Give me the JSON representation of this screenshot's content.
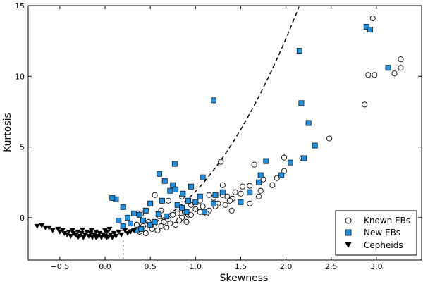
{
  "chart_data": {
    "type": "scatter",
    "xlabel": "Skewness",
    "ylabel": "Kurtosis",
    "xlim": [
      -0.85,
      3.5
    ],
    "ylim": [
      -3,
      15
    ],
    "xticks": [
      -0.5,
      0.0,
      0.5,
      1.0,
      1.5,
      2.0,
      2.5,
      3.0
    ],
    "xtick_labels": [
      "−0.5",
      "0.0",
      "0.5",
      "1.0",
      "1.5",
      "2.0",
      "2.5",
      "3.0"
    ],
    "yticks": [
      0,
      5,
      10,
      15
    ],
    "ytick_labels": [
      "0",
      "5",
      "10",
      "15"
    ],
    "grid": false,
    "legend_position": "lower-right",
    "reference_curve": {
      "style": "dashed",
      "color": "#000000",
      "x_start": 0.18,
      "vertical_marker_x": 0.2
    },
    "series": [
      {
        "name": "Known EBs",
        "marker": "open-circle",
        "color": "#000000",
        "points": [
          [
            2.96,
            14.1
          ],
          [
            2.91,
            10.1
          ],
          [
            2.98,
            10.1
          ],
          [
            3.2,
            10.2
          ],
          [
            3.27,
            11.2
          ],
          [
            3.27,
            10.6
          ],
          [
            2.87,
            8.0
          ],
          [
            2.48,
            5.6
          ],
          [
            2.18,
            4.2
          ],
          [
            1.65,
            3.75
          ],
          [
            1.28,
            3.95
          ],
          [
            1.98,
            4.25
          ],
          [
            1.98,
            3.3
          ],
          [
            1.9,
            2.8
          ],
          [
            1.85,
            2.3
          ],
          [
            1.75,
            2.7
          ],
          [
            1.72,
            1.9
          ],
          [
            1.6,
            2.25
          ],
          [
            1.52,
            2.2
          ],
          [
            1.5,
            1.7
          ],
          [
            1.44,
            1.8
          ],
          [
            1.41,
            1.35
          ],
          [
            1.38,
            1.2
          ],
          [
            1.35,
            1.5
          ],
          [
            1.33,
            0.9
          ],
          [
            1.3,
            2.3
          ],
          [
            1.3,
            1.6
          ],
          [
            1.25,
            1.0
          ],
          [
            1.22,
            0.8
          ],
          [
            1.2,
            1.4
          ],
          [
            1.15,
            0.5
          ],
          [
            1.12,
            0.3
          ],
          [
            1.08,
            0.8
          ],
          [
            1.05,
            0.4
          ],
          [
            1.0,
            0.6
          ],
          [
            0.95,
            0.9
          ],
          [
            0.92,
            0.2
          ],
          [
            0.9,
            -0.3
          ],
          [
            0.88,
            0.4
          ],
          [
            0.85,
            0.0
          ],
          [
            0.82,
            -0.2
          ],
          [
            0.8,
            0.3
          ],
          [
            0.78,
            -0.5
          ],
          [
            0.75,
            0.2
          ],
          [
            0.72,
            -0.4
          ],
          [
            0.7,
            -0.1
          ],
          [
            0.68,
            -0.7
          ],
          [
            0.65,
            -0.3
          ],
          [
            0.62,
            -0.6
          ],
          [
            0.6,
            0.1
          ],
          [
            0.58,
            -0.9
          ],
          [
            0.55,
            -0.4
          ],
          [
            0.52,
            -0.8
          ],
          [
            0.5,
            1.0
          ],
          [
            0.48,
            -0.3
          ],
          [
            0.45,
            -1.1
          ],
          [
            0.42,
            -0.6
          ],
          [
            0.4,
            0.3
          ],
          [
            0.38,
            -1.0
          ],
          [
            0.35,
            -0.5
          ],
          [
            0.55,
            1.6
          ],
          [
            0.62,
            0.5
          ],
          [
            0.7,
            1.2
          ],
          [
            0.95,
            0.2
          ],
          [
            1.05,
            1.2
          ],
          [
            1.15,
            1.6
          ],
          [
            1.4,
            0.5
          ],
          [
            1.6,
            1.0
          ],
          [
            1.7,
            1.5
          ],
          [
            0.85,
            1.5
          ]
        ]
      },
      {
        "name": "New EBs",
        "marker": "filled-square",
        "color": "#1f8fe0",
        "points": [
          [
            2.89,
            13.5
          ],
          [
            2.93,
            13.3
          ],
          [
            3.13,
            10.6
          ],
          [
            2.15,
            11.8
          ],
          [
            2.17,
            8.1
          ],
          [
            2.25,
            6.7
          ],
          [
            2.32,
            5.1
          ],
          [
            2.2,
            4.2
          ],
          [
            2.05,
            3.9
          ],
          [
            1.95,
            3.0
          ],
          [
            1.78,
            4.0
          ],
          [
            1.72,
            3.0
          ],
          [
            1.7,
            2.5
          ],
          [
            1.6,
            1.8
          ],
          [
            1.2,
            8.3
          ],
          [
            1.08,
            2.85
          ],
          [
            0.77,
            3.8
          ],
          [
            0.6,
            3.1
          ],
          [
            0.66,
            2.6
          ],
          [
            0.75,
            2.3
          ],
          [
            0.86,
            1.7
          ],
          [
            0.78,
            2.0
          ],
          [
            0.72,
            1.9
          ],
          [
            0.95,
            2.2
          ],
          [
            1.0,
            1.1
          ],
          [
            1.05,
            1.5
          ],
          [
            1.22,
            1.6
          ],
          [
            1.2,
            1.0
          ],
          [
            0.63,
            1.2
          ],
          [
            0.59,
            0.25
          ],
          [
            0.8,
            0.9
          ],
          [
            0.9,
            0.4
          ],
          [
            0.92,
            1.2
          ],
          [
            0.45,
            0.5
          ],
          [
            0.5,
            1.0
          ],
          [
            0.38,
            0.2
          ],
          [
            0.32,
            0.3
          ],
          [
            0.25,
            0.0
          ],
          [
            0.2,
            0.75
          ],
          [
            0.12,
            1.3
          ],
          [
            0.08,
            1.4
          ],
          [
            0.15,
            -0.2
          ],
          [
            0.2,
            -0.6
          ],
          [
            0.28,
            -0.4
          ],
          [
            0.35,
            -0.9
          ],
          [
            0.42,
            -0.2
          ],
          [
            0.5,
            -0.5
          ],
          [
            0.55,
            -0.3
          ],
          [
            0.68,
            0.1
          ],
          [
            0.85,
            0.7
          ],
          [
            1.1,
            0.4
          ],
          [
            1.3,
            1.8
          ],
          [
            1.5,
            1.1
          ],
          [
            0.4,
            -0.8
          ]
        ]
      },
      {
        "name": "Cepheids",
        "marker": "filled-triangle-down",
        "color": "#000000",
        "points": [
          [
            -0.75,
            -0.6
          ],
          [
            -0.7,
            -0.55
          ],
          [
            -0.66,
            -0.7
          ],
          [
            -0.62,
            -0.7
          ],
          [
            -0.58,
            -0.9
          ],
          [
            -0.52,
            -0.8
          ],
          [
            -0.5,
            -1.0
          ],
          [
            -0.47,
            -0.9
          ],
          [
            -0.45,
            -1.1
          ],
          [
            -0.42,
            -1.2
          ],
          [
            -0.4,
            -1.0
          ],
          [
            -0.38,
            -1.3
          ],
          [
            -0.35,
            -1.1
          ],
          [
            -0.33,
            -1.2
          ],
          [
            -0.3,
            -1.0
          ],
          [
            -0.28,
            -1.3
          ],
          [
            -0.26,
            -1.1
          ],
          [
            -0.24,
            -1.4
          ],
          [
            -0.22,
            -1.2
          ],
          [
            -0.2,
            -1.0
          ],
          [
            -0.18,
            -1.3
          ],
          [
            -0.16,
            -1.1
          ],
          [
            -0.14,
            -1.4
          ],
          [
            -0.12,
            -1.2
          ],
          [
            -0.1,
            -1.0
          ],
          [
            -0.08,
            -1.3
          ],
          [
            -0.06,
            -1.1
          ],
          [
            -0.04,
            -1.4
          ],
          [
            -0.02,
            -1.2
          ],
          [
            0.0,
            -1.3
          ],
          [
            0.02,
            -1.0
          ],
          [
            0.04,
            -1.35
          ],
          [
            0.06,
            -1.2
          ],
          [
            0.08,
            -1.4
          ],
          [
            0.1,
            -1.1
          ],
          [
            0.12,
            -1.3
          ],
          [
            0.15,
            -1.0
          ],
          [
            0.18,
            -1.2
          ],
          [
            0.22,
            -0.9
          ],
          [
            0.25,
            -1.1
          ],
          [
            0.28,
            -1.0
          ],
          [
            0.32,
            -0.9
          ],
          [
            -0.36,
            -0.9
          ],
          [
            -0.25,
            -0.85
          ],
          [
            -0.15,
            -0.9
          ],
          [
            0.0,
            -0.9
          ],
          [
            0.05,
            -0.8
          ],
          [
            -0.3,
            -1.4
          ],
          [
            -0.1,
            -1.4
          ],
          [
            0.02,
            -1.4
          ]
        ]
      }
    ]
  }
}
